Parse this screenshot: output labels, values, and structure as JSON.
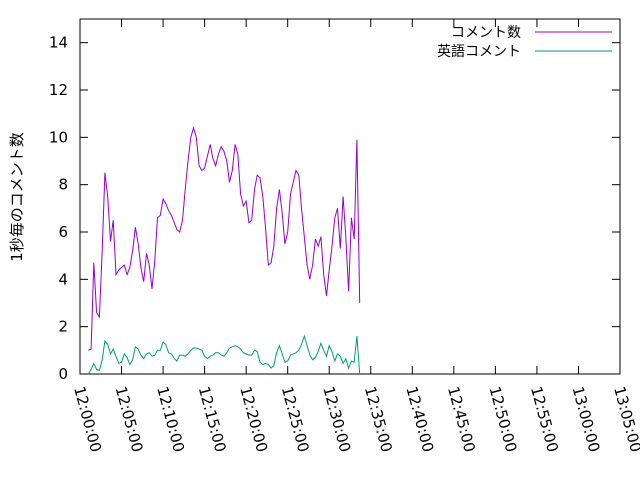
{
  "chart_data": {
    "type": "line",
    "title": "",
    "xlabel": "",
    "ylabel": "1秒毎のコメント数",
    "xlim": [
      "12:00:00",
      "13:05:00"
    ],
    "ylim": [
      0,
      15
    ],
    "x_ticks": [
      "12:00:00",
      "12:05:00",
      "12:10:00",
      "12:15:00",
      "12:20:00",
      "12:25:00",
      "12:30:00",
      "12:35:00",
      "12:40:00",
      "12:45:00",
      "12:50:00",
      "12:55:00",
      "13:00:00",
      "13:05:00"
    ],
    "y_ticks": [
      0,
      2,
      4,
      6,
      8,
      10,
      12,
      14
    ],
    "grid": false,
    "legend": "top-right",
    "series": [
      {
        "name": "コメント数",
        "color": "#9400d3",
        "points": [
          [
            "12:01:00",
            1.0
          ],
          [
            "12:01:20",
            1.05
          ],
          [
            "12:01:40",
            4.7
          ],
          [
            "12:02:00",
            2.6
          ],
          [
            "12:02:20",
            2.4
          ],
          [
            "12:02:40",
            5.2
          ],
          [
            "12:03:00",
            8.5
          ],
          [
            "12:03:20",
            7.5
          ],
          [
            "12:03:40",
            5.6
          ],
          [
            "12:04:00",
            6.5
          ],
          [
            "12:04:20",
            4.2
          ],
          [
            "12:04:40",
            4.4
          ],
          [
            "12:05:00",
            4.5
          ],
          [
            "12:05:20",
            4.6
          ],
          [
            "12:05:40",
            4.2
          ],
          [
            "12:06:00",
            4.5
          ],
          [
            "12:06:20",
            5.2
          ],
          [
            "12:06:40",
            6.2
          ],
          [
            "12:07:00",
            5.5
          ],
          [
            "12:07:20",
            4.5
          ],
          [
            "12:07:40",
            3.9
          ],
          [
            "12:08:00",
            5.1
          ],
          [
            "12:08:20",
            4.6
          ],
          [
            "12:08:40",
            3.6
          ],
          [
            "12:09:00",
            4.8
          ],
          [
            "12:09:20",
            6.6
          ],
          [
            "12:09:40",
            6.7
          ],
          [
            "12:10:00",
            7.4
          ],
          [
            "12:10:20",
            7.2
          ],
          [
            "12:10:40",
            6.9
          ],
          [
            "12:11:00",
            6.7
          ],
          [
            "12:11:20",
            6.4
          ],
          [
            "12:11:40",
            6.1
          ],
          [
            "12:12:00",
            6.0
          ],
          [
            "12:12:20",
            6.5
          ],
          [
            "12:12:40",
            7.8
          ],
          [
            "12:13:00",
            9.0
          ],
          [
            "12:13:20",
            10.0
          ],
          [
            "12:13:40",
            10.4
          ],
          [
            "12:14:00",
            10.0
          ],
          [
            "12:14:20",
            8.8
          ],
          [
            "12:14:40",
            8.6
          ],
          [
            "12:15:00",
            8.7
          ],
          [
            "12:15:20",
            9.2
          ],
          [
            "12:15:40",
            9.7
          ],
          [
            "12:16:00",
            9.1
          ],
          [
            "12:16:20",
            8.8
          ],
          [
            "12:16:40",
            9.3
          ],
          [
            "12:17:00",
            9.6
          ],
          [
            "12:17:20",
            9.4
          ],
          [
            "12:17:40",
            9.0
          ],
          [
            "12:18:00",
            8.1
          ],
          [
            "12:18:20",
            8.6
          ],
          [
            "12:18:40",
            9.7
          ],
          [
            "12:19:00",
            9.3
          ],
          [
            "12:19:20",
            7.6
          ],
          [
            "12:19:40",
            7.1
          ],
          [
            "12:20:00",
            7.3
          ],
          [
            "12:20:20",
            6.4
          ],
          [
            "12:20:40",
            6.5
          ],
          [
            "12:21:00",
            7.8
          ],
          [
            "12:21:20",
            8.4
          ],
          [
            "12:21:40",
            8.3
          ],
          [
            "12:22:00",
            7.5
          ],
          [
            "12:22:20",
            6.2
          ],
          [
            "12:22:40",
            4.6
          ],
          [
            "12:23:00",
            4.7
          ],
          [
            "12:23:20",
            5.4
          ],
          [
            "12:23:40",
            7.0
          ],
          [
            "12:24:00",
            7.8
          ],
          [
            "12:24:20",
            6.8
          ],
          [
            "12:24:40",
            5.5
          ],
          [
            "12:25:00",
            6.0
          ],
          [
            "12:25:20",
            7.6
          ],
          [
            "12:25:40",
            8.1
          ],
          [
            "12:26:00",
            8.6
          ],
          [
            "12:26:20",
            8.4
          ],
          [
            "12:26:40",
            7.0
          ],
          [
            "12:27:00",
            5.8
          ],
          [
            "12:27:20",
            4.6
          ],
          [
            "12:27:40",
            4.0
          ],
          [
            "12:28:00",
            4.6
          ],
          [
            "12:28:20",
            5.7
          ],
          [
            "12:28:40",
            5.4
          ],
          [
            "12:29:00",
            5.8
          ],
          [
            "12:29:20",
            4.2
          ],
          [
            "12:29:40",
            3.3
          ],
          [
            "12:30:00",
            4.4
          ],
          [
            "12:30:20",
            5.4
          ],
          [
            "12:30:40",
            6.6
          ],
          [
            "12:31:00",
            7.0
          ],
          [
            "12:31:20",
            5.3
          ],
          [
            "12:31:40",
            7.5
          ],
          [
            "12:32:00",
            5.8
          ],
          [
            "12:32:20",
            3.5
          ],
          [
            "12:32:40",
            6.6
          ],
          [
            "12:33:00",
            5.7
          ],
          [
            "12:33:20",
            9.9
          ],
          [
            "12:33:40",
            3.0
          ]
        ]
      },
      {
        "name": "英語コメント",
        "color": "#009e73",
        "points": [
          [
            "12:01:00",
            0.0
          ],
          [
            "12:01:20",
            0.2
          ],
          [
            "12:01:40",
            0.45
          ],
          [
            "12:02:00",
            0.2
          ],
          [
            "12:02:20",
            0.15
          ],
          [
            "12:02:40",
            0.6
          ],
          [
            "12:03:00",
            1.4
          ],
          [
            "12:03:20",
            1.25
          ],
          [
            "12:03:40",
            0.85
          ],
          [
            "12:04:00",
            1.05
          ],
          [
            "12:04:20",
            0.75
          ],
          [
            "12:04:40",
            0.45
          ],
          [
            "12:05:00",
            0.5
          ],
          [
            "12:05:20",
            0.85
          ],
          [
            "12:05:40",
            0.7
          ],
          [
            "12:06:00",
            0.4
          ],
          [
            "12:06:20",
            0.6
          ],
          [
            "12:06:40",
            1.15
          ],
          [
            "12:07:00",
            1.05
          ],
          [
            "12:07:20",
            0.8
          ],
          [
            "12:07:40",
            0.65
          ],
          [
            "12:08:00",
            0.85
          ],
          [
            "12:08:20",
            0.9
          ],
          [
            "12:08:40",
            0.75
          ],
          [
            "12:09:00",
            0.8
          ],
          [
            "12:09:20",
            1.0
          ],
          [
            "12:09:40",
            1.0
          ],
          [
            "12:10:00",
            1.35
          ],
          [
            "12:10:20",
            1.25
          ],
          [
            "12:10:40",
            0.9
          ],
          [
            "12:11:00",
            0.85
          ],
          [
            "12:11:20",
            0.65
          ],
          [
            "12:11:40",
            0.55
          ],
          [
            "12:12:00",
            0.8
          ],
          [
            "12:12:20",
            0.8
          ],
          [
            "12:12:40",
            0.75
          ],
          [
            "12:13:00",
            0.85
          ],
          [
            "12:13:20",
            1.0
          ],
          [
            "12:13:40",
            1.1
          ],
          [
            "12:14:00",
            1.1
          ],
          [
            "12:14:20",
            1.05
          ],
          [
            "12:14:40",
            1.0
          ],
          [
            "12:15:00",
            0.75
          ],
          [
            "12:15:20",
            0.65
          ],
          [
            "12:15:40",
            0.75
          ],
          [
            "12:16:00",
            0.8
          ],
          [
            "12:16:20",
            0.9
          ],
          [
            "12:16:40",
            0.9
          ],
          [
            "12:17:00",
            0.8
          ],
          [
            "12:17:20",
            0.75
          ],
          [
            "12:17:40",
            0.9
          ],
          [
            "12:18:00",
            1.1
          ],
          [
            "12:18:20",
            1.15
          ],
          [
            "12:18:40",
            1.2
          ],
          [
            "12:19:00",
            1.15
          ],
          [
            "12:19:20",
            1.05
          ],
          [
            "12:19:40",
            0.9
          ],
          [
            "12:20:00",
            0.85
          ],
          [
            "12:20:20",
            0.8
          ],
          [
            "12:20:40",
            0.8
          ],
          [
            "12:21:00",
            1.0
          ],
          [
            "12:21:20",
            0.95
          ],
          [
            "12:21:40",
            0.5
          ],
          [
            "12:22:00",
            0.4
          ],
          [
            "12:22:20",
            0.45
          ],
          [
            "12:22:40",
            0.4
          ],
          [
            "12:23:00",
            0.25
          ],
          [
            "12:23:20",
            0.35
          ],
          [
            "12:23:40",
            0.9
          ],
          [
            "12:24:00",
            1.2
          ],
          [
            "12:24:20",
            0.85
          ],
          [
            "12:24:40",
            0.5
          ],
          [
            "12:25:00",
            0.55
          ],
          [
            "12:25:20",
            0.8
          ],
          [
            "12:25:40",
            0.85
          ],
          [
            "12:26:00",
            0.9
          ],
          [
            "12:26:20",
            1.0
          ],
          [
            "12:26:40",
            1.25
          ],
          [
            "12:27:00",
            1.6
          ],
          [
            "12:27:20",
            1.2
          ],
          [
            "12:27:40",
            0.8
          ],
          [
            "12:28:00",
            0.6
          ],
          [
            "12:28:20",
            0.7
          ],
          [
            "12:28:40",
            0.95
          ],
          [
            "12:29:00",
            1.3
          ],
          [
            "12:29:20",
            1.0
          ],
          [
            "12:29:40",
            0.75
          ],
          [
            "12:30:00",
            1.2
          ],
          [
            "12:30:20",
            0.95
          ],
          [
            "12:30:40",
            0.55
          ],
          [
            "12:31:00",
            0.85
          ],
          [
            "12:31:20",
            0.75
          ],
          [
            "12:31:40",
            0.45
          ],
          [
            "12:32:00",
            0.65
          ],
          [
            "12:32:20",
            0.25
          ],
          [
            "12:32:40",
            0.55
          ],
          [
            "12:33:00",
            0.5
          ],
          [
            "12:33:20",
            1.6
          ],
          [
            "12:33:40",
            0.0
          ]
        ]
      }
    ]
  }
}
